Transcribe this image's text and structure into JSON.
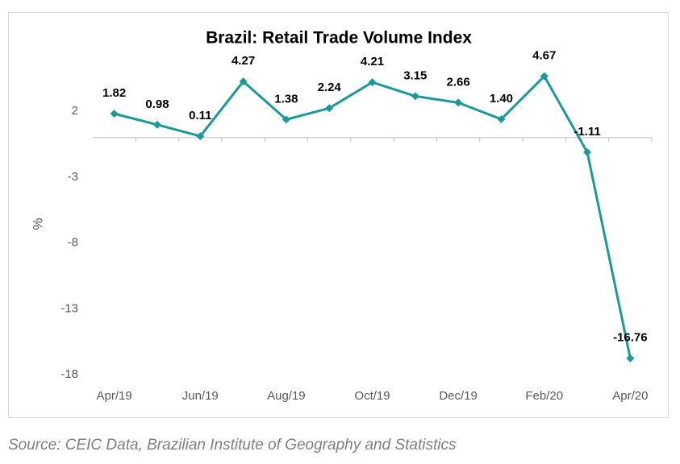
{
  "chart_data": {
    "type": "line",
    "title": "Brazil: Retail Trade Volume Index",
    "y_label": "%",
    "categories": [
      "Apr/19",
      null,
      "Jun/19",
      null,
      "Aug/19",
      null,
      "Oct/19",
      null,
      "Dec/19",
      null,
      "Feb/20",
      null,
      "Apr/20"
    ],
    "series": [
      {
        "name": "Retail Trade Volume Index",
        "color": "#1a9a9a",
        "values": [
          1.82,
          0.98,
          0.11,
          4.27,
          1.38,
          2.24,
          4.21,
          3.15,
          2.66,
          1.4,
          4.67,
          -1.11,
          -16.76
        ],
        "value_labels": [
          "1.82",
          "0.98",
          "0.11",
          "4.27",
          "1.38",
          "2.24",
          "4.21",
          "3.15",
          "2.66",
          "1.40",
          "4.67",
          "-1.11",
          "-16.76"
        ]
      }
    ],
    "ylim": [
      -18,
      5.5
    ],
    "yticks": [
      2,
      -3,
      -8,
      -13,
      -18
    ],
    "source": "Source: CEIC Data, Brazilian Institute of Geography and Statistics"
  }
}
